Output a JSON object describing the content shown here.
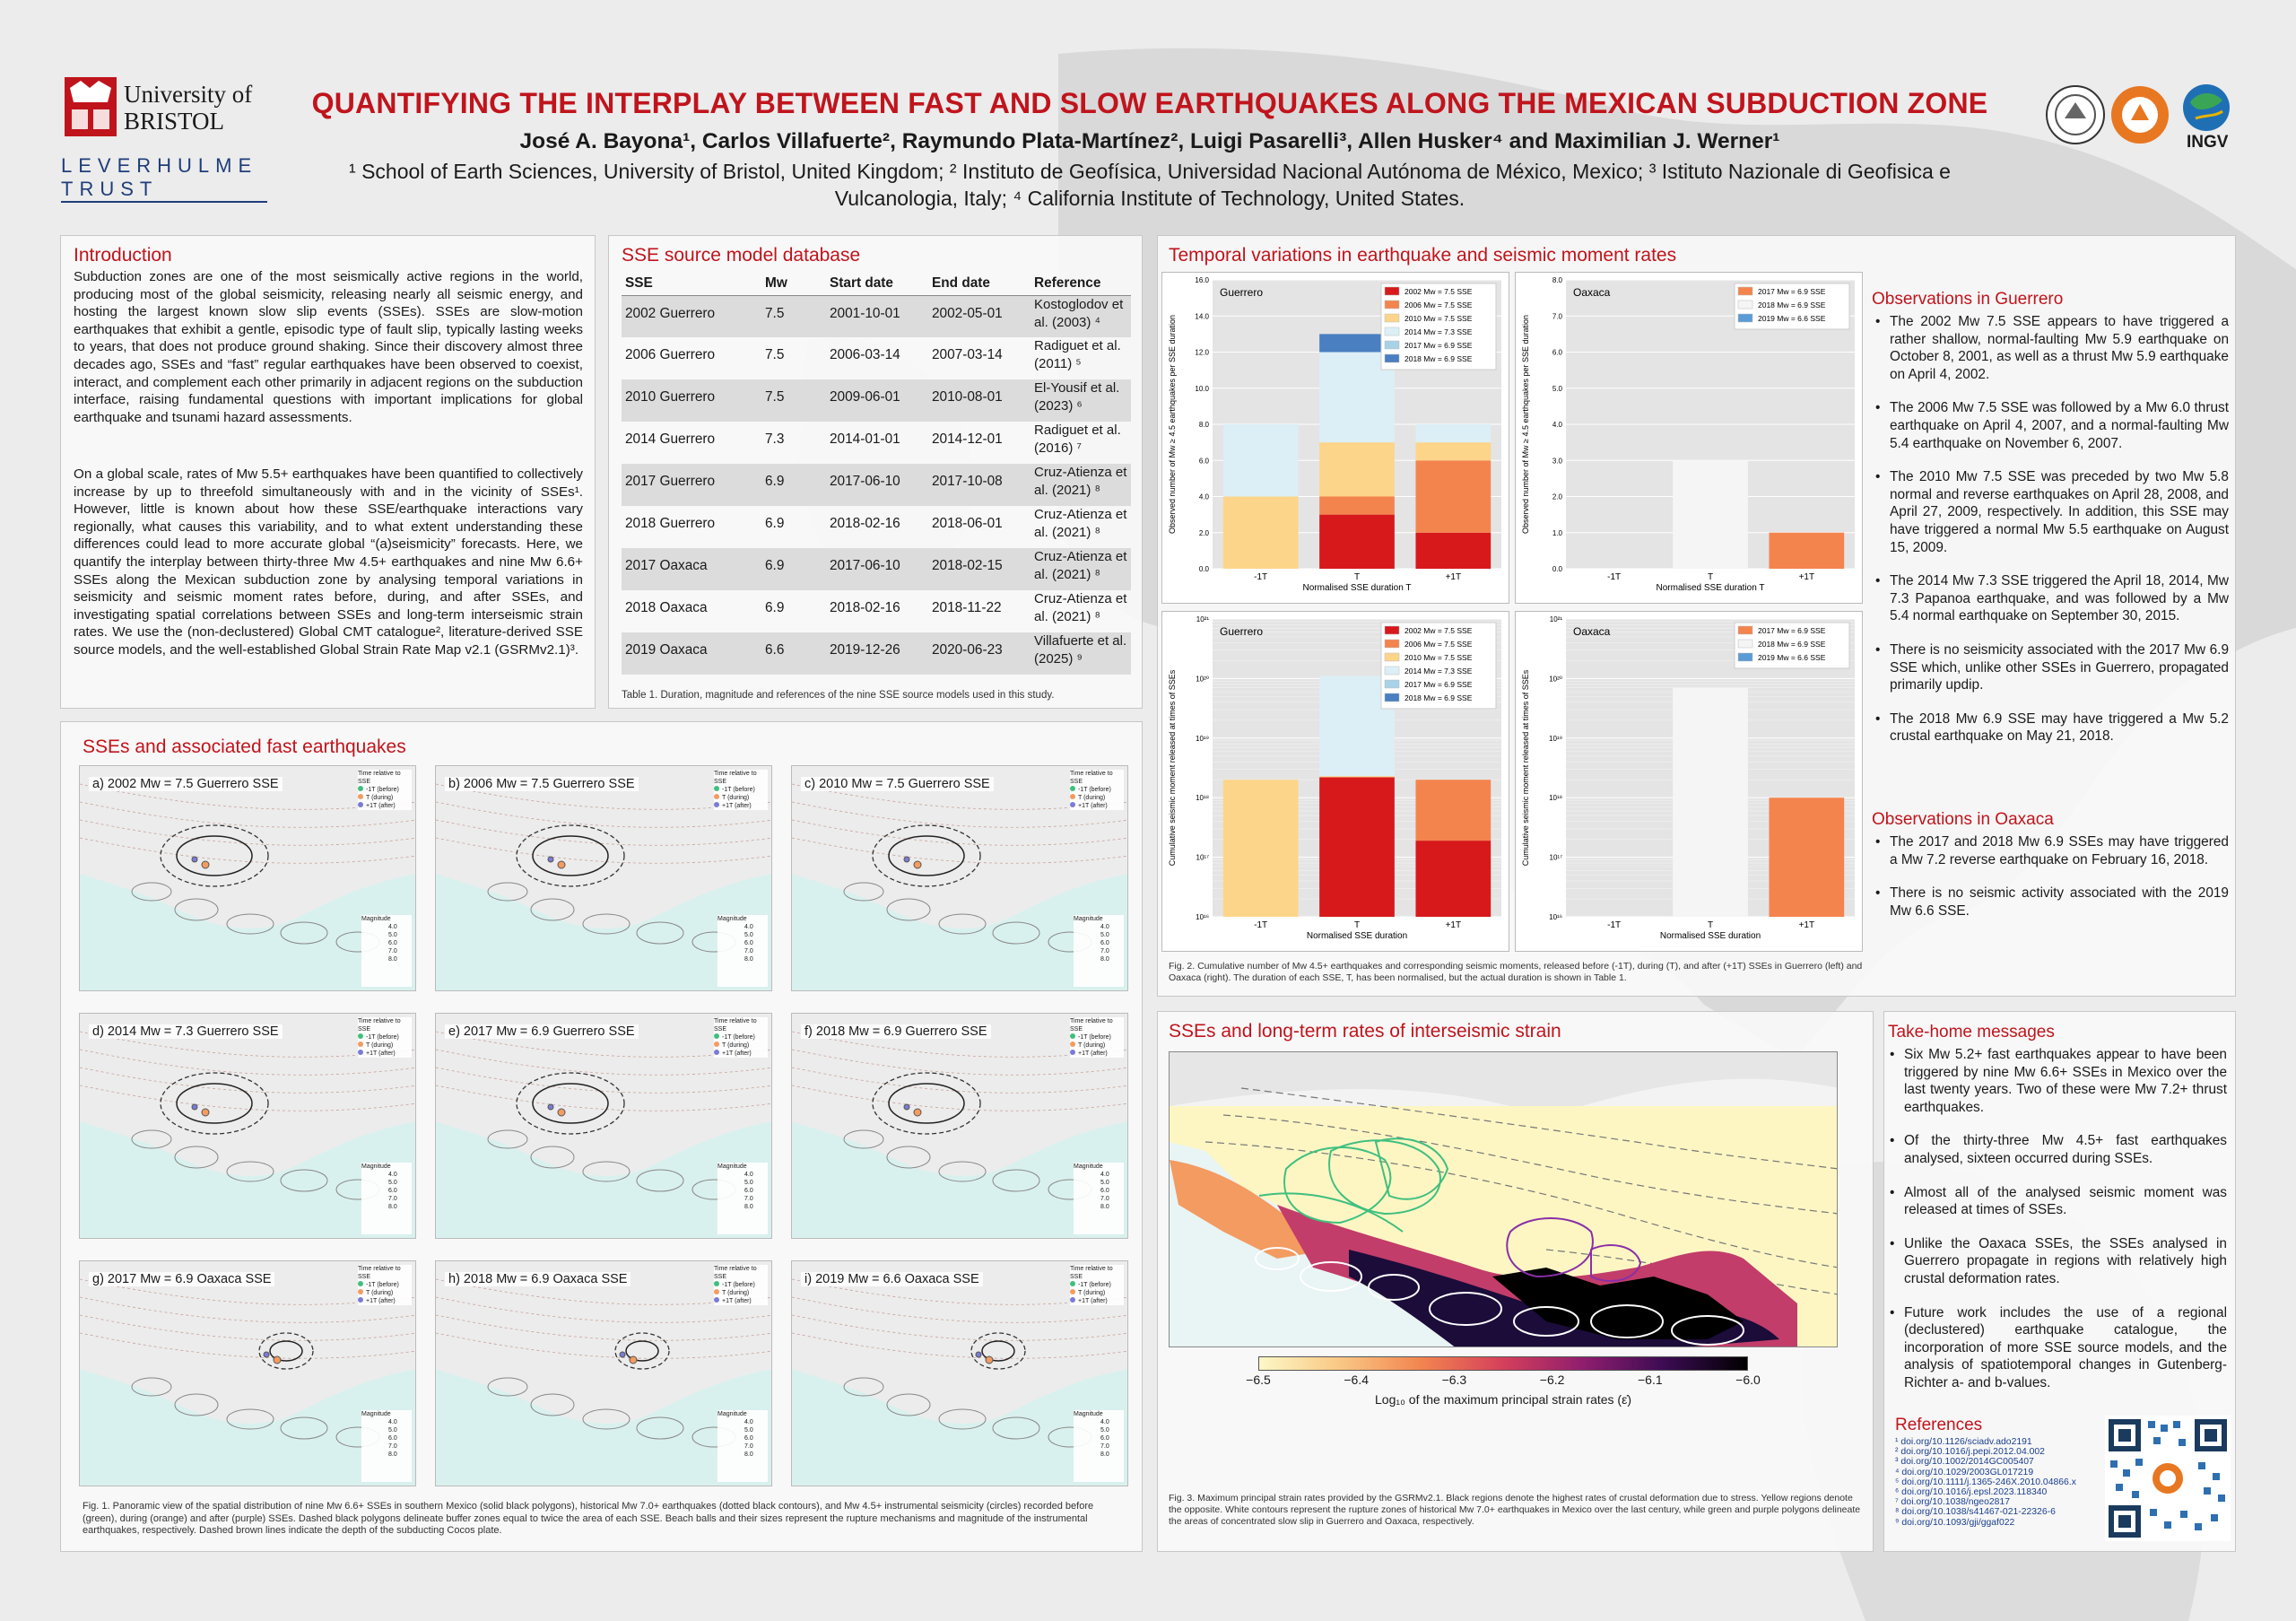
{
  "header": {
    "university": "University of BRISTOL",
    "leverhulme_line1": "LEVERHULME",
    "leverhulme_line2": "TRUST",
    "title": "QUANTIFYING THE INTERPLAY BETWEEN FAST AND SLOW EARTHQUAKES ALONG THE MEXICAN SUBDUCTION ZONE",
    "authors": "José A. Bayona¹, Carlos Villafuerte², Raymundo Plata-Martínez², Luigi Pasarelli³, Allen Husker⁴ and Maximilian J. Werner¹",
    "affiliations": "¹ School of Earth Sciences, University of Bristol, United Kingdom; ² Instituto de Geofísica, Universidad Nacional Autónoma de México, Mexico; ³ Istituto Nazionale di Geofisica e Vulcanologia, Italy; ⁴ California Institute of Technology, United States.",
    "ingv": "INGV"
  },
  "intro": {
    "title": "Introduction",
    "p1": "Subduction zones are one of the most seismically active regions in the world, producing most of the global seismicity, releasing nearly all seismic energy, and hosting the largest known slow slip events (SSEs). SSEs are slow-motion earthquakes that exhibit a gentle, episodic type of fault slip, typically lasting weeks to years, that does not produce ground shaking. Since their discovery almost three decades ago, SSEs and “fast” regular earthquakes have been observed to coexist, interact, and complement each other primarily in adjacent regions on the subduction interface, raising fundamental questions with important implications for global earthquake and tsunami hazard assessments.",
    "p2": "On a global scale, rates of Mw 5.5+ earthquakes have been quantified to collectively increase by up to threefold simultaneously with and in the vicinity of SSEs¹. However, little is known about how these SSE/earthquake interactions vary regionally, what causes this variability, and to what extent understanding these differences could lead to more accurate global “(a)seismicity” forecasts. Here, we quantify the interplay between thirty-three Mw 4.5+ earthquakes and nine Mw 6.6+ SSEs along the Mexican subduction zone by analysing temporal variations in seismicity and seismic moment rates before, during, and after SSEs, and investigating spatial correlations between SSEs and long-term interseismic strain rates. We use the (non-declustered) Global CMT catalogue², literature-derived SSE source models, and the well-established Global Strain Rate Map v2.1 (GSRMv2.1)³."
  },
  "sse_db": {
    "title": "SSE source model database",
    "headers": [
      "SSE",
      "Mw",
      "Start date",
      "End date",
      "Reference"
    ],
    "rows": [
      [
        "2002 Guerrero",
        "7.5",
        "2001-10-01",
        "2002-05-01",
        "Kostoglodov et al. (2003) ⁴"
      ],
      [
        "2006 Guerrero",
        "7.5",
        "2006-03-14",
        "2007-03-14",
        "Radiguet et al. (2011) ⁵"
      ],
      [
        "2010 Guerrero",
        "7.5",
        "2009-06-01",
        "2010-08-01",
        "El-Yousif et al. (2023) ⁶"
      ],
      [
        "2014 Guerrero",
        "7.3",
        "2014-01-01",
        "2014-12-01",
        "Radiguet et al. (2016) ⁷"
      ],
      [
        "2017 Guerrero",
        "6.9",
        "2017-06-10",
        "2017-10-08",
        "Cruz-Atienza et al. (2021) ⁸"
      ],
      [
        "2018 Guerrero",
        "6.9",
        "2018-02-16",
        "2018-06-01",
        "Cruz-Atienza et al. (2021) ⁸"
      ],
      [
        "2017 Oaxaca",
        "6.9",
        "2017-06-10",
        "2018-02-15",
        "Cruz-Atienza et al. (2021) ⁸"
      ],
      [
        "2018 Oaxaca",
        "6.9",
        "2018-02-16",
        "2018-11-22",
        "Cruz-Atienza et al. (2021) ⁸"
      ],
      [
        "2019 Oaxaca",
        "6.6",
        "2019-12-26",
        "2020-06-23",
        "Villafuerte et al. (2025) ⁹"
      ]
    ],
    "caption": "Table 1. Duration, magnitude and references of the nine SSE source models used in this study."
  },
  "sse_fast": {
    "title": "SSEs and associated fast earthquakes",
    "maps": [
      "a) 2002 Mw = 7.5 Guerrero SSE",
      "b) 2006 Mw = 7.5 Guerrero SSE",
      "c) 2010 Mw = 7.5 Guerrero SSE",
      "d) 2014 Mw = 7.3 Guerrero SSE",
      "e) 2017 Mw = 6.9 Guerrero SSE",
      "f) 2018 Mw = 6.9 Guerrero SSE",
      "g) 2017 Mw = 6.9 Oaxaca SSE",
      "h) 2018 Mw = 6.9 Oaxaca SSE",
      "i) 2019 Mw = 6.6 Oaxaca SSE"
    ],
    "legend_title": "Time relative to SSE",
    "legend_items": [
      "-1T (before)",
      "T (during)",
      "+1T (after)"
    ],
    "mag_title": "Magnitude",
    "mag_items": [
      "4.0",
      "5.0",
      "6.0",
      "7.0",
      "8.0"
    ],
    "caption": "Fig. 1. Panoramic view of the spatial distribution of nine Mw 6.6+ SSEs in southern Mexico (solid black polygons), historical Mw 7.0+ earthquakes (dotted black contours), and Mw 4.5+ instrumental seismicity (circles) recorded before (green), during (orange) and after (purple) SSEs. Dashed black polygons delineate buffer zones equal to twice the area of each SSE. Beach balls and their sizes represent the rupture mechanisms and magnitude of the instrumental earthquakes, respectively. Dashed brown lines indicate the depth of the subducting Cocos plate."
  },
  "temporal": {
    "title": "Temporal variations in earthquake and seismic moment rates",
    "caption": "Fig. 2. Cumulative number of Mw 4.5+ earthquakes and corresponding seismic moments, released before (-1T), during (T), and after (+1T) SSEs in Guerrero (left) and Oaxaca (right). The duration of each SSE, T, has been normalised, but the actual duration is shown in Table 1."
  },
  "chart_data": [
    {
      "type": "bar",
      "title": "Guerrero",
      "xlabel": "Normalised SSE duration T",
      "ylabel": "Observed number of Mw ≥ 4.5 earthquakes per SSE duration",
      "categories": [
        "-1T",
        "T",
        "+1T"
      ],
      "ylim": [
        0,
        16
      ],
      "yticks": [
        "0.0",
        "2.0",
        "4.0",
        "6.0",
        "8.0",
        "10.0",
        "12.0",
        "14.0",
        "16.0"
      ],
      "stacked": true,
      "series": [
        {
          "name": "2002 Mw = 7.5 SSE",
          "color": "#d7191c",
          "values": [
            0,
            3,
            2
          ]
        },
        {
          "name": "2006 Mw = 7.5 SSE",
          "color": "#f4844e",
          "values": [
            0,
            1,
            4
          ]
        },
        {
          "name": "2010 Mw = 7.5 SSE",
          "color": "#fdd58a",
          "values": [
            4,
            3,
            1
          ]
        },
        {
          "name": "2014 Mw = 7.3 SSE",
          "color": "#dceff6",
          "values": [
            4,
            5,
            1
          ]
        },
        {
          "name": "2017 Mw = 6.9 SSE",
          "color": "#a8d2e8",
          "values": [
            0,
            0,
            0
          ]
        },
        {
          "name": "2018 Mw = 6.9 SSE",
          "color": "#4a7fc1",
          "values": [
            0,
            1,
            0
          ]
        }
      ]
    },
    {
      "type": "bar",
      "title": "Oaxaca",
      "xlabel": "Normalised SSE duration T",
      "ylabel": "Observed number of Mw ≥ 4.5 earthquakes per SSE duration",
      "categories": [
        "-1T",
        "T",
        "+1T"
      ],
      "ylim": [
        0,
        8
      ],
      "yticks": [
        "0.0",
        "1.0",
        "2.0",
        "3.0",
        "4.0",
        "5.0",
        "6.0",
        "7.0",
        "8.0"
      ],
      "stacked": true,
      "series": [
        {
          "name": "2017 Mw = 6.9 SSE",
          "color": "#f4844e",
          "values": [
            0,
            0,
            1
          ]
        },
        {
          "name": "2018 Mw = 6.9 SSE",
          "color": "#f5f5f5",
          "values": [
            0,
            3,
            0
          ]
        },
        {
          "name": "2019 Mw = 6.6 SSE",
          "color": "#5b9bd5",
          "values": [
            0,
            0,
            0
          ]
        }
      ]
    },
    {
      "type": "bar",
      "title": "Guerrero",
      "xlabel": "Normalised SSE duration",
      "ylabel": "Cumulative seismic moment released at times of SSEs",
      "categories": [
        "-1T",
        "T",
        "+1T"
      ],
      "yscale": "log",
      "ylim": [
        "10^16",
        "10^21"
      ],
      "yticks": [
        "10¹⁶",
        "10¹⁷",
        "10¹⁸",
        "10¹⁹",
        "10²⁰",
        "10²¹"
      ],
      "stacked": true,
      "series": [
        {
          "name": "2002 Mw = 7.5 SSE",
          "color": "#d7191c",
          "cumulative_top": [
            0,
            2.2e+18,
            1.9e+17
          ]
        },
        {
          "name": "2006 Mw = 7.5 SSE",
          "color": "#f4844e",
          "cumulative_top": [
            0,
            2.2e+18,
            2e+18
          ]
        },
        {
          "name": "2010 Mw = 7.5 SSE",
          "color": "#fdd58a",
          "cumulative_top": [
            2e+18,
            2.3e+18,
            2e+18
          ]
        },
        {
          "name": "2014 Mw = 7.3 SSE",
          "color": "#dceff6",
          "cumulative_top": [
            2e+18,
            1.1e+20,
            2e+18
          ]
        },
        {
          "name": "2017 Mw = 6.9 SSE",
          "color": "#a8d2e8",
          "cumulative_top": [
            2e+18,
            1.1e+20,
            2e+18
          ]
        },
        {
          "name": "2018 Mw = 6.9 SSE",
          "color": "#4a7fc1",
          "cumulative_top": [
            2e+18,
            1.1e+20,
            2e+18
          ]
        }
      ]
    },
    {
      "type": "bar",
      "title": "Oaxaca",
      "xlabel": "Normalised SSE duration",
      "ylabel": "Cumulative seismic moment released at times of SSEs",
      "categories": [
        "-1T",
        "T",
        "+1T"
      ],
      "yscale": "log",
      "ylim": [
        "10^16",
        "10^21"
      ],
      "yticks": [
        "10¹⁶",
        "10¹⁷",
        "10¹⁸",
        "10¹⁹",
        "10²⁰",
        "10²¹"
      ],
      "stacked": true,
      "series": [
        {
          "name": "2017 Mw = 6.9 SSE",
          "color": "#f4844e",
          "cumulative_top": [
            0,
            0,
            1e+18
          ]
        },
        {
          "name": "2018 Mw = 6.9 SSE",
          "color": "#f5f5f5",
          "cumulative_top": [
            0,
            7e+19,
            0
          ]
        },
        {
          "name": "2019 Mw = 6.6 SSE",
          "color": "#5b9bd5",
          "cumulative_top": [
            0,
            0,
            0
          ]
        }
      ]
    }
  ],
  "strain": {
    "title": "SSEs and long-term rates of interseismic strain",
    "cbar_ticks": [
      "−6.5",
      "−6.4",
      "−6.3",
      "−6.2",
      "−6.1",
      "−6.0"
    ],
    "cbar_label": "Log₁₀ of the maximum principal strain rates (ε̇)",
    "caption": "Fig. 3. Maximum principal strain rates provided by the GSRMv2.1. Black regions denote the highest rates of crustal deformation due to stress. Yellow regions denote the opposite. White contours represent the rupture zones of historical Mw 7.0+ earthquakes in Mexico over the last century, while green and purple polygons delineate the areas of concentrated slow slip in Guerrero and Oaxaca, respectively."
  },
  "obs_guerrero": {
    "title": "Observations in Guerrero",
    "items": [
      "The 2002 Mw 7.5 SSE appears to have triggered a rather shallow, normal-faulting Mw 5.9 earthquake on October 8, 2001, as well as a thrust Mw 5.9 earthquake on April 4, 2002.",
      "The 2006 Mw 7.5 SSE was followed by a Mw 6.0 thrust earthquake on April 4, 2007, and a normal-faulting Mw 5.4 earthquake on November 6, 2007.",
      "The 2010 Mw 7.5 SSE was preceded by two Mw 5.8 normal and reverse earthquakes on April 28, 2008, and April 27, 2009, respectively. In addition, this SSE may have triggered a normal Mw 5.5 earthquake on August 15, 2009.",
      "The 2014 Mw 7.3 SSE triggered the April 18, 2014, Mw 7.3 Papanoa earthquake, and was followed by a Mw 5.4 normal earthquake on September 30, 2015.",
      "There is no seismicity associated with the 2017 Mw 6.9 SSE which, unlike other SSEs in Guerrero, propagated primarily updip.",
      "The 2018 Mw 6.9 SSE may have triggered a Mw 5.2 crustal earthquake on May 21, 2018."
    ]
  },
  "obs_oaxaca": {
    "title": "Observations in Oaxaca",
    "items": [
      "The 2017 and 2018 Mw 6.9 SSEs may have triggered a Mw 7.2 reverse earthquake on February 16, 2018.",
      "There is no seismic activity associated with the 2019 Mw 6.6 SSE."
    ]
  },
  "takehome": {
    "title": "Take-home messages",
    "items": [
      "Six Mw 5.2+ fast earthquakes appear to have been triggered by nine Mw 6.6+ SSEs in Mexico over the last twenty years. Two of these were Mw 7.2+ thrust earthquakes.",
      "Of the thirty-three Mw 4.5+ fast earthquakes analysed, sixteen occurred during SSEs.",
      "Almost all of the analysed seismic moment was released at times of SSEs.",
      "Unlike the Oaxaca SSEs, the SSEs analysed in Guerrero propagate in regions with relatively high crustal deformation rates.",
      "Future work includes the use of a regional (declustered) earthquake catalogue, the incorporation of more SSE source models, and the analysis of spatiotemporal changes in Gutenberg-Richter a- and b-values."
    ]
  },
  "references": {
    "title": "References",
    "items": [
      "¹ doi.org/10.1126/sciadv.ado2191",
      "² doi.org/10.1016/j.pepi.2012.04.002",
      "³ doi.org/10.1002/2014GC005407",
      "⁴ doi.org/10.1029/2003GL017219",
      "⁵ doi.org/10.1111/j.1365-246X.2010.04866.x",
      "⁶ doi.org/10.1016/j.epsl.2023.118340",
      "⁷ doi.org/10.1038/ngeo2817",
      "⁸ doi.org/10.1038/s41467-021-22326-6",
      "⁹ doi.org/10.1093/gji/ggaf022"
    ]
  },
  "colors": {
    "accent": "#c0141c",
    "leverhulme": "#1f3d7a"
  }
}
